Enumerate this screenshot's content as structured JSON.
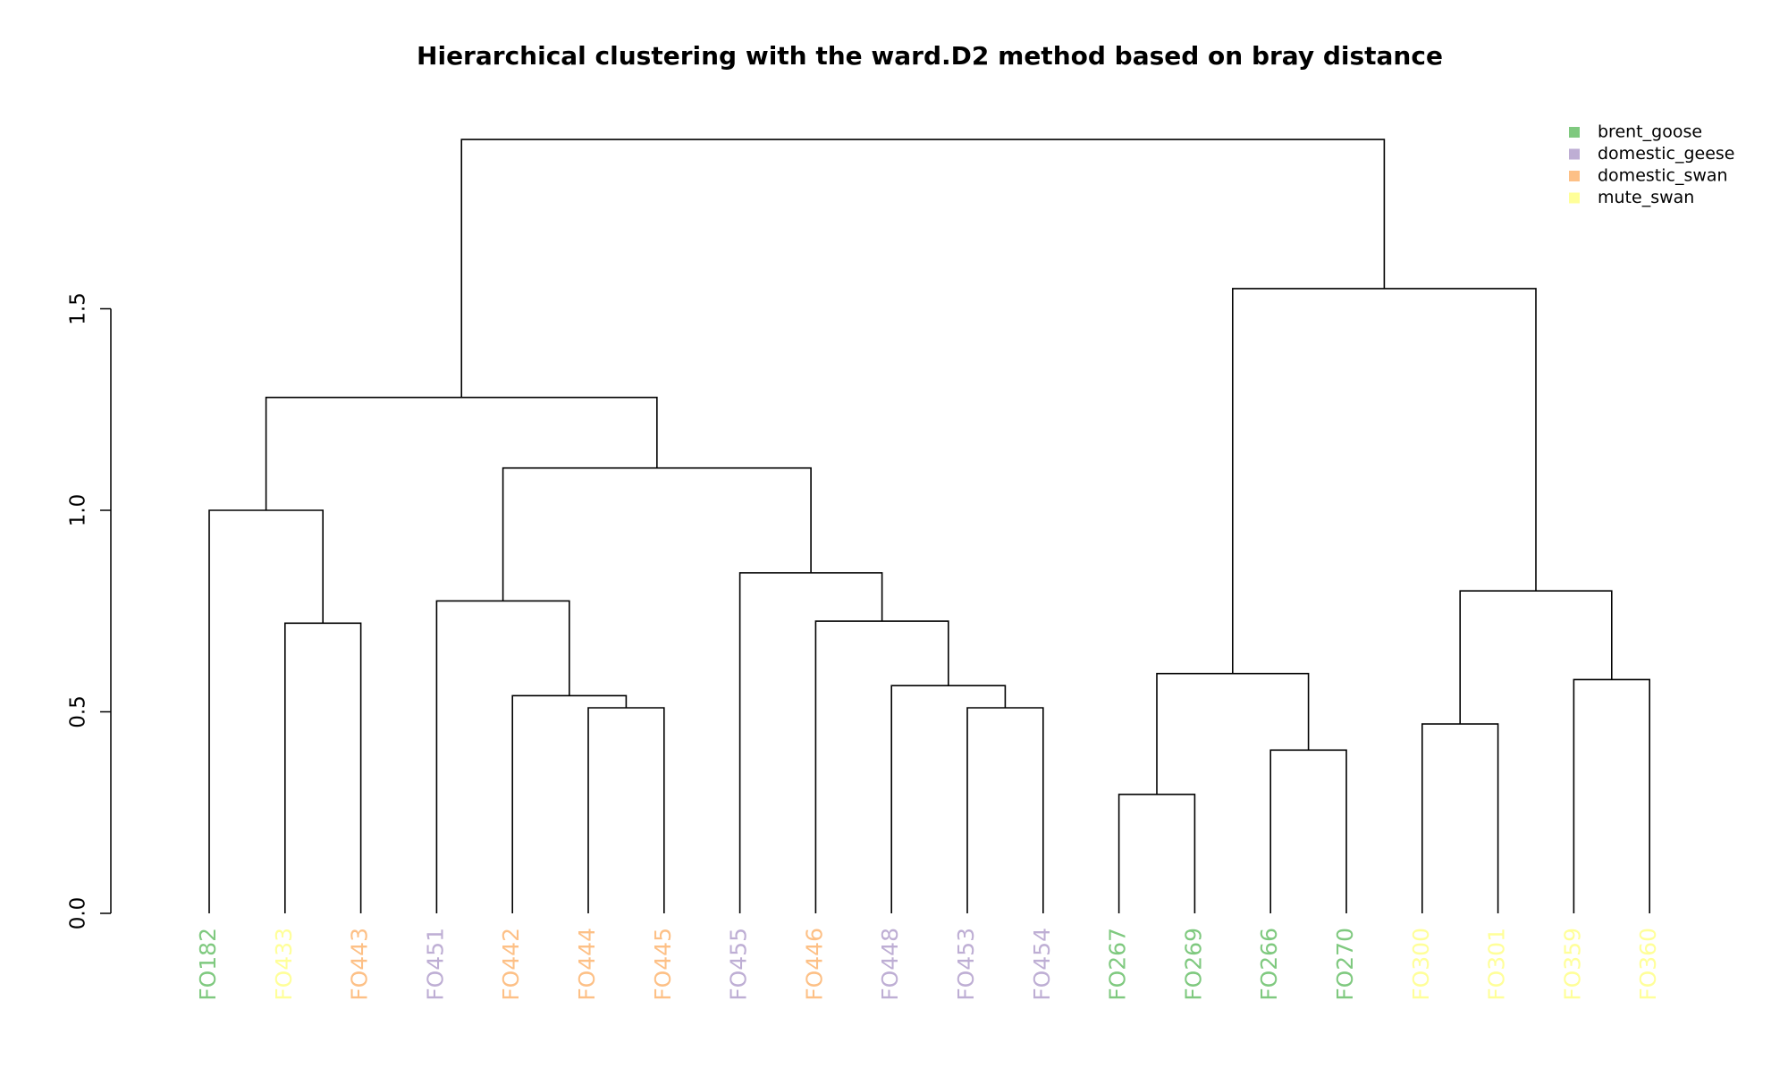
{
  "chart_data": {
    "type": "dendrogram",
    "title": "Hierarchical clustering with the ward.D2 method based on bray distance",
    "ylim": [
      0,
      1.95
    ],
    "y_ticks": [
      0.0,
      0.5,
      1.0,
      1.5
    ],
    "y_tick_labels": [
      "0.0",
      "0.5",
      "1.0",
      "1.5"
    ],
    "grid": false,
    "legend_position": "top-right",
    "legend": [
      {
        "label": "brent_goose",
        "color": "#7fc97f"
      },
      {
        "label": "domestic_geese",
        "color": "#beaed4"
      },
      {
        "label": "domestic_swan",
        "color": "#fdc086"
      },
      {
        "label": "mute_swan",
        "color": "#ffff99"
      }
    ],
    "leaves": [
      {
        "label": "FO182",
        "group": "brent_goose",
        "color": "#7fc97f"
      },
      {
        "label": "FO433",
        "group": "mute_swan",
        "color": "#ffff99"
      },
      {
        "label": "FO443",
        "group": "domestic_swan",
        "color": "#fdc086"
      },
      {
        "label": "FO451",
        "group": "domestic_geese",
        "color": "#beaed4"
      },
      {
        "label": "FO442",
        "group": "domestic_swan",
        "color": "#fdc086"
      },
      {
        "label": "FO444",
        "group": "domestic_swan",
        "color": "#fdc086"
      },
      {
        "label": "FO445",
        "group": "domestic_swan",
        "color": "#fdc086"
      },
      {
        "label": "FO455",
        "group": "domestic_geese",
        "color": "#beaed4"
      },
      {
        "label": "FO446",
        "group": "domestic_swan",
        "color": "#fdc086"
      },
      {
        "label": "FO448",
        "group": "domestic_geese",
        "color": "#beaed4"
      },
      {
        "label": "FO453",
        "group": "domestic_geese",
        "color": "#beaed4"
      },
      {
        "label": "FO454",
        "group": "domestic_geese",
        "color": "#beaed4"
      },
      {
        "label": "FO267",
        "group": "brent_goose",
        "color": "#7fc97f"
      },
      {
        "label": "FO269",
        "group": "brent_goose",
        "color": "#7fc97f"
      },
      {
        "label": "FO266",
        "group": "brent_goose",
        "color": "#7fc97f"
      },
      {
        "label": "FO270",
        "group": "brent_goose",
        "color": "#7fc97f"
      },
      {
        "label": "FO300",
        "group": "mute_swan",
        "color": "#ffff99"
      },
      {
        "label": "FO301",
        "group": "mute_swan",
        "color": "#ffff99"
      },
      {
        "label": "FO359",
        "group": "mute_swan",
        "color": "#ffff99"
      },
      {
        "label": "FO360",
        "group": "mute_swan",
        "color": "#ffff99"
      }
    ],
    "merges": [
      {
        "left": "L1",
        "right": "L2",
        "height": 0.72
      },
      {
        "left": "L0",
        "right": "M0",
        "height": 1.0
      },
      {
        "left": "L5",
        "right": "L6",
        "height": 0.51
      },
      {
        "left": "L4",
        "right": "M2",
        "height": 0.54
      },
      {
        "left": "L3",
        "right": "M3",
        "height": 0.775
      },
      {
        "left": "L10",
        "right": "L11",
        "height": 0.51
      },
      {
        "left": "L9",
        "right": "M5",
        "height": 0.565
      },
      {
        "left": "L8",
        "right": "M6",
        "height": 0.725
      },
      {
        "left": "L7",
        "right": "M7",
        "height": 0.845
      },
      {
        "left": "M4",
        "right": "M8",
        "height": 1.105
      },
      {
        "left": "M1",
        "right": "M9",
        "height": 1.28
      },
      {
        "left": "L12",
        "right": "L13",
        "height": 0.295
      },
      {
        "left": "L14",
        "right": "L15",
        "height": 0.405
      },
      {
        "left": "M11",
        "right": "M12",
        "height": 0.595
      },
      {
        "left": "L16",
        "right": "L17",
        "height": 0.47
      },
      {
        "left": "L18",
        "right": "L19",
        "height": 0.58
      },
      {
        "left": "M14",
        "right": "M15",
        "height": 0.8
      },
      {
        "left": "M13",
        "right": "M16",
        "height": 1.55
      },
      {
        "left": "M10",
        "right": "M17",
        "height": 1.92
      }
    ]
  }
}
